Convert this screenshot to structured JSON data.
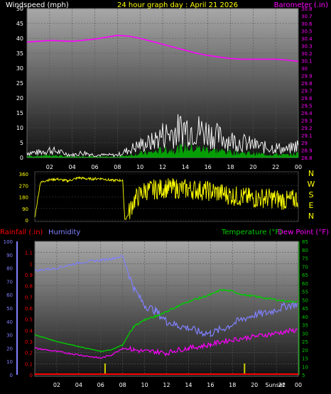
{
  "title": "24 hour graph day : April 21 2026",
  "colors": {
    "wind": "#ffffff",
    "gust_fill": "#00cc00",
    "barometer": "#ff00ff",
    "direction": "#ffff00",
    "humidity": "#8080ff",
    "temperature": "#00cc00",
    "dewpoint": "#ff00ff",
    "rainfall": "#ff0000",
    "markers": "#cccc00"
  },
  "chart_data": [
    {
      "type": "line",
      "name": "wind-barometer",
      "title": "24 hour graph day : April 21 2026",
      "ylabel": "Windspeed (mph)",
      "y2label": "Barometer (.in)",
      "categories": [
        "02",
        "04",
        "06",
        "08",
        "10",
        "12",
        "14",
        "16",
        "18",
        "20",
        "22",
        "00"
      ],
      "ylim": [
        0,
        50
      ],
      "yticks": [
        "0",
        "5",
        "10",
        "15",
        "20",
        "25",
        "30",
        "35",
        "40",
        "45",
        "50"
      ],
      "y2lim": [
        28.8,
        30.8
      ],
      "y2ticks": [
        "28.8",
        "28.9",
        "29",
        "29.1",
        "29.2",
        "29.3",
        "29.4",
        "29.5",
        "29.6",
        "29.7",
        "29.8",
        "29.9",
        "30",
        "30.1",
        "30.2",
        "30.3",
        "30.4",
        "30.5",
        "30.6",
        "30.7",
        "30.8"
      ],
      "barometer": {
        "x": [
          0,
          2,
          4,
          6,
          8,
          9,
          10,
          11,
          12,
          13,
          14,
          15,
          16,
          17,
          18,
          19,
          20,
          21,
          22,
          23,
          24
        ],
        "y": [
          30.35,
          30.37,
          30.36,
          30.39,
          30.44,
          30.43,
          30.4,
          30.36,
          30.32,
          30.28,
          30.24,
          30.2,
          30.17,
          30.15,
          30.13,
          30.12,
          30.12,
          30.12,
          30.12,
          30.11,
          30.09
        ]
      },
      "wind_envelope": {
        "x": [
          0,
          1,
          2,
          3,
          4,
          5,
          6,
          7,
          8,
          9,
          10,
          11,
          12,
          13,
          14,
          15,
          16,
          17,
          18,
          19,
          20,
          21,
          22,
          23,
          24
        ],
        "y": [
          2,
          2,
          3,
          2,
          1,
          2,
          1,
          1,
          1,
          3,
          5,
          6,
          9,
          10,
          12,
          11,
          10,
          8,
          7,
          6,
          5,
          4,
          4,
          3,
          5
        ]
      }
    },
    {
      "type": "line",
      "name": "wind-direction",
      "ylim": [
        0,
        360
      ],
      "yticks": [
        "0",
        "90",
        "180",
        "270",
        "360"
      ],
      "right_labels": [
        "N",
        "W",
        "S",
        "E",
        "N"
      ],
      "x": [
        0,
        0.5,
        1,
        2,
        3,
        4,
        5,
        6,
        7,
        8,
        8.2,
        8.5,
        9,
        10,
        11,
        12,
        13,
        14,
        15,
        16,
        17,
        18,
        19,
        20,
        21,
        22,
        23,
        24
      ],
      "y": [
        20,
        290,
        310,
        320,
        305,
        330,
        320,
        325,
        310,
        310,
        0,
        40,
        150,
        230,
        240,
        250,
        245,
        240,
        235,
        225,
        210,
        190,
        180,
        170,
        175,
        165,
        150,
        170
      ]
    },
    {
      "type": "line",
      "name": "temperature-humidity",
      "ylabel_left_a": "Rainfall (.in)",
      "ylabel_left_b": "Humidity",
      "ylabel_right_a": "Temperature (°F)",
      "ylabel_right_b": "Dew Point (°F)",
      "categories": [
        "02",
        "04",
        "06",
        "08",
        "10",
        "12",
        "14",
        "16",
        "18",
        "20",
        "22",
        "00"
      ],
      "x_annotation": "Sunset",
      "humidity_lim": [
        0,
        100
      ],
      "humidity_ticks": [
        "0",
        "10",
        "20",
        "30",
        "40",
        "50",
        "60",
        "70",
        "80",
        "90",
        "100"
      ],
      "rain_lim": [
        0,
        1.2
      ],
      "rain_ticks": [
        "0",
        "0.1",
        "0.2",
        "0.3",
        "0.4",
        "0.5",
        "0.6",
        "0.7",
        "0.8",
        "0.9",
        "1",
        "1.1"
      ],
      "temp_lim": [
        5,
        85
      ],
      "temp_ticks": [
        "5",
        "10",
        "15",
        "20",
        "25",
        "30",
        "35",
        "40",
        "45",
        "50",
        "55",
        "60",
        "65",
        "70",
        "75",
        "80",
        "85"
      ],
      "humidity": {
        "x": [
          0,
          2,
          4,
          6,
          7,
          8,
          9,
          10,
          11,
          12,
          13,
          14,
          15,
          16,
          17,
          18,
          19,
          20,
          21,
          22,
          23,
          24
        ],
        "y": [
          78,
          80,
          84,
          86,
          87,
          89,
          65,
          52,
          48,
          40,
          37,
          35,
          32,
          31,
          34,
          38,
          42,
          45,
          46,
          49,
          52,
          53
        ]
      },
      "temperature": {
        "x": [
          0,
          2,
          4,
          6,
          7,
          8,
          9,
          10,
          11,
          12,
          13,
          14,
          15,
          16,
          17,
          18,
          19,
          20,
          21,
          22,
          23,
          24
        ],
        "y": [
          29,
          25,
          22,
          19,
          20,
          23,
          34,
          38,
          40,
          43,
          46,
          49,
          51,
          53,
          56,
          55,
          53,
          52,
          51,
          50,
          49,
          49
        ]
      },
      "dewpoint": {
        "x": [
          0,
          2,
          4,
          6,
          7,
          8,
          9,
          10,
          11,
          12,
          13,
          14,
          15,
          16,
          17,
          18,
          19,
          20,
          21,
          22,
          23,
          24
        ],
        "y": [
          21,
          19,
          17,
          15,
          17,
          21,
          20,
          19,
          19,
          18,
          20,
          21,
          22,
          23,
          25,
          26,
          27,
          28,
          29,
          30,
          31,
          32
        ]
      },
      "rainfall": {
        "x": [
          0,
          24
        ],
        "y": [
          0,
          0
        ]
      }
    }
  ]
}
